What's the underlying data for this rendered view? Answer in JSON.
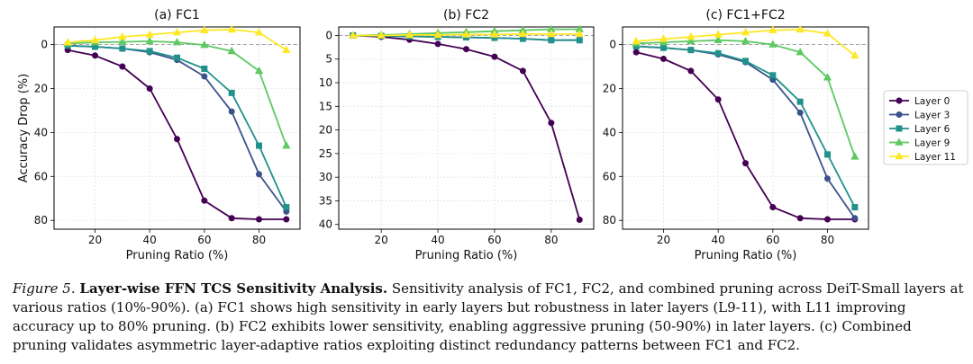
{
  "chart_data": [
    {
      "type": "line",
      "title": "(a) FC1",
      "xlabel": "Pruning Ratio (%)",
      "ylabel": "Accuracy Drop (%)",
      "x": [
        10,
        20,
        30,
        40,
        50,
        60,
        70,
        80,
        90
      ],
      "xticks": [
        20,
        40,
        60,
        80
      ],
      "xlim": [
        5,
        95
      ],
      "ylim": [
        84,
        -8
      ],
      "yticks": [
        0,
        20,
        40,
        60,
        80
      ],
      "y_inverted": true,
      "series": [
        {
          "name": "Layer 0",
          "values": [
            2.5,
            5,
            10,
            20,
            43,
            71,
            79,
            79.5,
            79.5
          ]
        },
        {
          "name": "Layer 3",
          "values": [
            0.5,
            1,
            1.8,
            3.5,
            7,
            14.5,
            30.5,
            59,
            76
          ]
        },
        {
          "name": "Layer 6",
          "values": [
            0.5,
            1,
            1.8,
            3,
            6,
            11,
            22,
            46,
            74
          ]
        },
        {
          "name": "Layer 9",
          "values": [
            -0.5,
            -1,
            -1.2,
            -1.5,
            -1,
            0.2,
            3,
            12,
            46
          ]
        },
        {
          "name": "Layer 11",
          "values": [
            -1,
            -2,
            -3.5,
            -4.5,
            -5.5,
            -6.5,
            -6.8,
            -5.5,
            2.5
          ]
        }
      ]
    },
    {
      "type": "line",
      "title": "(b) FC2",
      "xlabel": "Pruning Ratio (%)",
      "ylabel": "",
      "x": [
        10,
        20,
        30,
        40,
        50,
        60,
        70,
        80,
        90
      ],
      "xticks": [
        20,
        40,
        60,
        80
      ],
      "xlim": [
        5,
        95
      ],
      "ylim": [
        41,
        -1.8
      ],
      "yticks": [
        0,
        5,
        10,
        15,
        20,
        25,
        30,
        35,
        40
      ],
      "y_inverted": true,
      "series": [
        {
          "name": "Layer 0",
          "values": [
            0,
            0.3,
            0.9,
            1.8,
            2.9,
            4.5,
            7.5,
            18.5,
            39
          ]
        },
        {
          "name": "Layer 3",
          "values": [
            0,
            0.1,
            0.2,
            0.3,
            0.4,
            0.5,
            0.7,
            1,
            1
          ]
        },
        {
          "name": "Layer 6",
          "values": [
            0,
            0.1,
            0.2,
            0.3,
            0.4,
            0.5,
            0.7,
            1,
            1
          ]
        },
        {
          "name": "Layer 9",
          "values": [
            0,
            -0.1,
            -0.3,
            -0.5,
            -0.7,
            -0.9,
            -1.1,
            -1.3,
            -1.3
          ]
        },
        {
          "name": "Layer 11",
          "values": [
            0,
            0,
            -0.1,
            -0.1,
            -0.2,
            -0.2,
            -0.3,
            -0.3,
            -0.3
          ]
        }
      ]
    },
    {
      "type": "line",
      "title": "(c) FC1+FC2",
      "xlabel": "Pruning Ratio (%)",
      "ylabel": "",
      "x": [
        10,
        20,
        30,
        40,
        50,
        60,
        70,
        80,
        90
      ],
      "xticks": [
        20,
        40,
        60,
        80
      ],
      "xlim": [
        5,
        95
      ],
      "ylim": [
        84,
        -8
      ],
      "yticks": [
        0,
        20,
        40,
        60,
        80
      ],
      "y_inverted": true,
      "series": [
        {
          "name": "Layer 0",
          "values": [
            3.5,
            6.5,
            12,
            25,
            54,
            74,
            79,
            79.5,
            79.5
          ]
        },
        {
          "name": "Layer 3",
          "values": [
            0.8,
            1.5,
            2.5,
            4.5,
            8,
            16,
            31,
            61,
            79
          ]
        },
        {
          "name": "Layer 6",
          "values": [
            0.8,
            1.5,
            2.5,
            4,
            7.5,
            14,
            26,
            50,
            74
          ]
        },
        {
          "name": "Layer 9",
          "values": [
            -0.5,
            -1,
            -1.5,
            -2,
            -1.5,
            0,
            3.5,
            15,
            51
          ]
        },
        {
          "name": "Layer 11",
          "values": [
            -1.5,
            -2.5,
            -3.5,
            -4.5,
            -5.5,
            -6.5,
            -6.8,
            -5,
            5
          ]
        }
      ]
    }
  ],
  "legend": {
    "placement": "right",
    "entries": [
      "Layer 0",
      "Layer 3",
      "Layer 6",
      "Layer 9",
      "Layer 11"
    ]
  },
  "colors": {
    "Layer 0": "#440154",
    "Layer 3": "#3b528b",
    "Layer 6": "#21918c",
    "Layer 9": "#5ec962",
    "Layer 11": "#fde725",
    "markers": [
      "circle",
      "circle",
      "square",
      "triangle",
      "triangle"
    ]
  },
  "caption": {
    "label": "Figure 5.",
    "title": "Layer-wise FFN TCS Sensitivity Analysis.",
    "text": "Sensitivity analysis of FC1, FC2, and combined pruning across DeiT-Small layers at various ratios (10%-90%). (a) FC1 shows high sensitivity in early layers but robustness in later layers (L9-11), with L11 improving accuracy up to 80% pruning. (b) FC2 exhibits lower sensitivity, enabling aggressive pruning (50-90%) in later layers. (c) Combined pruning validates asymmetric layer-adaptive ratios exploiting distinct redundancy patterns between FC1 and FC2."
  }
}
